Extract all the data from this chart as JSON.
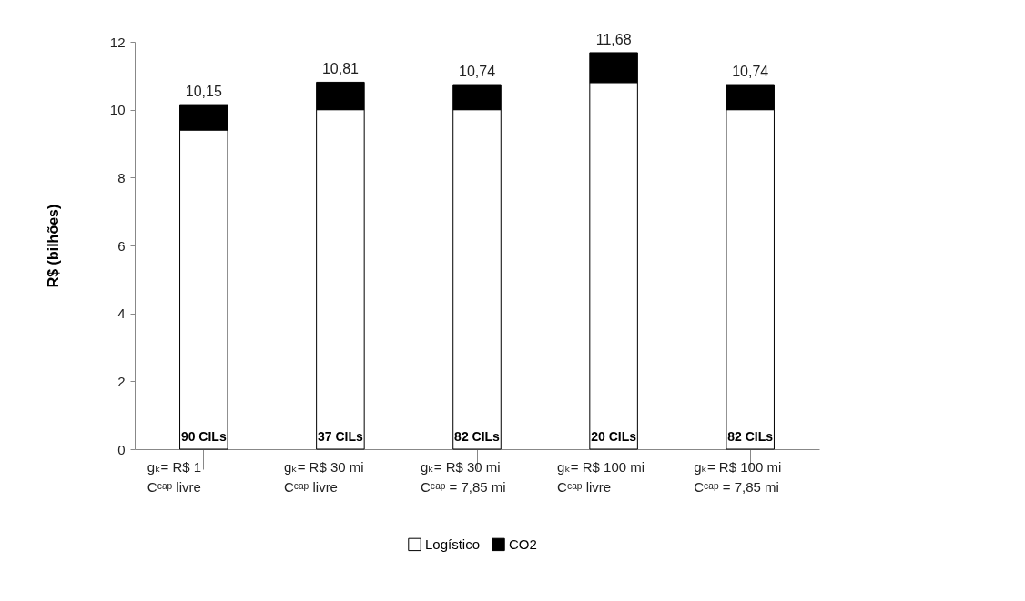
{
  "chart_data": {
    "type": "bar",
    "stacked": true,
    "ylabel": "R$ (bilhões)",
    "categories": [
      "gₖ= R$ 1\nCᶜᵃᵖ livre",
      "gₖ= R$ 30 mi\nCᶜᵃᵖ livre",
      "gₖ= R$ 30 mi\nCᶜᵃᵖ = 7,85 mi",
      "gₖ= R$ 100 mi\nCᶜᵃᵖ livre",
      "gₖ= R$ 100 mi\nCᶜᵃᵖ = 7,85 mi"
    ],
    "series": [
      {
        "name": "Logístico",
        "color": "#ffffff",
        "values": [
          9.4,
          10.0,
          10.0,
          10.8,
          10.0
        ]
      },
      {
        "name": "CO2",
        "color": "#000000",
        "values": [
          0.75,
          0.81,
          0.74,
          0.88,
          0.74
        ]
      }
    ],
    "totals": [
      "10,15",
      "10,81",
      "10,74",
      "11,68",
      "10,74"
    ],
    "annotations": [
      "90 CILs",
      "37 CILs",
      "82 CILs",
      "20 CILs",
      "82 CILs"
    ],
    "ylim": [
      0,
      12
    ],
    "yticks": [
      0,
      2,
      4,
      6,
      8,
      10,
      12
    ],
    "grid": false,
    "legend": "bottom"
  }
}
